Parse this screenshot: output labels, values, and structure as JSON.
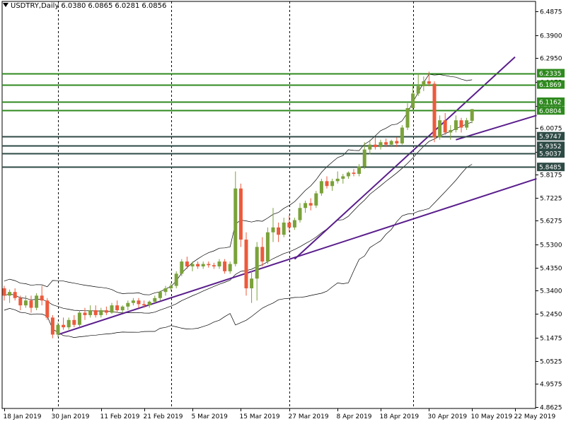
{
  "header": {
    "symbol": "USDTRY,Daily",
    "ohlc": [
      "6.0380",
      "6.0865",
      "6.0281",
      "6.0856"
    ]
  },
  "colors": {
    "up_candle": "#7aa23a",
    "down_candle": "#ec5a3c",
    "level_line": "#2f8a1f",
    "level_line_dark": "#2e4a45",
    "trendline": "#5a1e8c",
    "bands": "#000000",
    "badge_green": "#2f8a1f",
    "badge_dark": "#2e4a45"
  },
  "chart_data": {
    "type": "candlestick",
    "title": "USDTRY,Daily",
    "y_axis_ticks": [
      "6.4875",
      "6.3900",
      "6.2950",
      "6.1975",
      "6.1000",
      "6.0075",
      "5.9100",
      "5.8175",
      "5.7225",
      "5.6275",
      "5.5300",
      "5.4350",
      "5.3400",
      "5.2450",
      "5.1475",
      "5.0525",
      "4.9575",
      "4.8625"
    ],
    "ylim": [
      4.8625,
      6.4875
    ],
    "x_axis_ticks": [
      "18 Jan 2019",
      "30 Jan 2019",
      "11 Feb 2019",
      "21 Feb 2019",
      "5 Mar 2019",
      "15 Mar 2019",
      "27 Mar 2019",
      "8 Apr 2019",
      "18 Apr 2019",
      "30 Apr 2019",
      "10 May 2019",
      "22 May 2019"
    ],
    "period_separators_at": [
      "30 Jan 2019",
      "21 Feb 2019",
      "27 Mar 2019",
      "30 Apr 2019"
    ],
    "horizontal_levels": [
      {
        "label": "6.2335",
        "value": 6.2335,
        "style": "green"
      },
      {
        "label": "6.1869",
        "value": 6.1869,
        "style": "green"
      },
      {
        "label": "6.1162",
        "value": 6.1162,
        "style": "green"
      },
      {
        "label": "6.0804",
        "value": 6.0804,
        "style": "green"
      },
      {
        "label": "5.9747",
        "value": 5.9747,
        "style": "dark"
      },
      {
        "label": "5.9352",
        "value": 5.9352,
        "style": "dark"
      },
      {
        "label": "5.9037",
        "value": 5.9037,
        "style": "dark"
      },
      {
        "label": "5.8485",
        "value": 5.8485,
        "style": "dark"
      }
    ],
    "candles": [
      {
        "o": 5.35,
        "h": 5.36,
        "l": 5.3,
        "c": 5.32
      },
      {
        "o": 5.32,
        "h": 5.345,
        "l": 5.29,
        "c": 5.335
      },
      {
        "o": 5.335,
        "h": 5.35,
        "l": 5.3,
        "c": 5.31
      },
      {
        "o": 5.31,
        "h": 5.32,
        "l": 5.26,
        "c": 5.28
      },
      {
        "o": 5.28,
        "h": 5.32,
        "l": 5.27,
        "c": 5.3
      },
      {
        "o": 5.3,
        "h": 5.32,
        "l": 5.25,
        "c": 5.27
      },
      {
        "o": 5.27,
        "h": 5.33,
        "l": 5.26,
        "c": 5.32
      },
      {
        "o": 5.32,
        "h": 5.36,
        "l": 5.28,
        "c": 5.3
      },
      {
        "o": 5.3,
        "h": 5.31,
        "l": 5.22,
        "c": 5.23
      },
      {
        "o": 5.23,
        "h": 5.24,
        "l": 5.145,
        "c": 5.16
      },
      {
        "o": 5.16,
        "h": 5.21,
        "l": 5.15,
        "c": 5.2
      },
      {
        "o": 5.2,
        "h": 5.23,
        "l": 5.18,
        "c": 5.19
      },
      {
        "o": 5.19,
        "h": 5.23,
        "l": 5.18,
        "c": 5.22
      },
      {
        "o": 5.22,
        "h": 5.24,
        "l": 5.19,
        "c": 5.2
      },
      {
        "o": 5.2,
        "h": 5.26,
        "l": 5.19,
        "c": 5.25
      },
      {
        "o": 5.25,
        "h": 5.27,
        "l": 5.22,
        "c": 5.24
      },
      {
        "o": 5.24,
        "h": 5.28,
        "l": 5.23,
        "c": 5.26
      },
      {
        "o": 5.26,
        "h": 5.28,
        "l": 5.23,
        "c": 5.24
      },
      {
        "o": 5.24,
        "h": 5.27,
        "l": 5.23,
        "c": 5.26
      },
      {
        "o": 5.26,
        "h": 5.275,
        "l": 5.24,
        "c": 5.25
      },
      {
        "o": 5.25,
        "h": 5.29,
        "l": 5.245,
        "c": 5.28
      },
      {
        "o": 5.28,
        "h": 5.3,
        "l": 5.25,
        "c": 5.26
      },
      {
        "o": 5.26,
        "h": 5.28,
        "l": 5.25,
        "c": 5.275
      },
      {
        "o": 5.275,
        "h": 5.3,
        "l": 5.26,
        "c": 5.29
      },
      {
        "o": 5.29,
        "h": 5.31,
        "l": 5.28,
        "c": 5.3
      },
      {
        "o": 5.3,
        "h": 5.31,
        "l": 5.27,
        "c": 5.285
      },
      {
        "o": 5.285,
        "h": 5.3,
        "l": 5.27,
        "c": 5.28
      },
      {
        "o": 5.28,
        "h": 5.3,
        "l": 5.27,
        "c": 5.295
      },
      {
        "o": 5.295,
        "h": 5.32,
        "l": 5.29,
        "c": 5.31
      },
      {
        "o": 5.31,
        "h": 5.34,
        "l": 5.3,
        "c": 5.335
      },
      {
        "o": 5.335,
        "h": 5.36,
        "l": 5.32,
        "c": 5.35
      },
      {
        "o": 5.35,
        "h": 5.37,
        "l": 5.34,
        "c": 5.36
      },
      {
        "o": 5.36,
        "h": 5.42,
        "l": 5.35,
        "c": 5.41
      },
      {
        "o": 5.41,
        "h": 5.47,
        "l": 5.4,
        "c": 5.46
      },
      {
        "o": 5.46,
        "h": 5.48,
        "l": 5.43,
        "c": 5.44
      },
      {
        "o": 5.44,
        "h": 5.46,
        "l": 5.42,
        "c": 5.45
      },
      {
        "o": 5.45,
        "h": 5.46,
        "l": 5.43,
        "c": 5.44
      },
      {
        "o": 5.44,
        "h": 5.46,
        "l": 5.43,
        "c": 5.45
      },
      {
        "o": 5.45,
        "h": 5.46,
        "l": 5.435,
        "c": 5.445
      },
      {
        "o": 5.445,
        "h": 5.455,
        "l": 5.43,
        "c": 5.44
      },
      {
        "o": 5.44,
        "h": 5.47,
        "l": 5.43,
        "c": 5.46
      },
      {
        "o": 5.46,
        "h": 5.47,
        "l": 5.41,
        "c": 5.42
      },
      {
        "o": 5.42,
        "h": 5.46,
        "l": 5.41,
        "c": 5.45
      },
      {
        "o": 5.45,
        "h": 5.83,
        "l": 5.44,
        "c": 5.76
      },
      {
        "o": 5.76,
        "h": 5.78,
        "l": 5.52,
        "c": 5.55
      },
      {
        "o": 5.55,
        "h": 5.58,
        "l": 5.32,
        "c": 5.35
      },
      {
        "o": 5.35,
        "h": 5.42,
        "l": 5.29,
        "c": 5.39
      },
      {
        "o": 5.39,
        "h": 5.54,
        "l": 5.3,
        "c": 5.52
      },
      {
        "o": 5.52,
        "h": 5.56,
        "l": 5.44,
        "c": 5.46
      },
      {
        "o": 5.46,
        "h": 5.6,
        "l": 5.45,
        "c": 5.58
      },
      {
        "o": 5.58,
        "h": 5.68,
        "l": 5.54,
        "c": 5.6
      },
      {
        "o": 5.6,
        "h": 5.62,
        "l": 5.54,
        "c": 5.57
      },
      {
        "o": 5.57,
        "h": 5.64,
        "l": 5.56,
        "c": 5.62
      },
      {
        "o": 5.62,
        "h": 5.65,
        "l": 5.58,
        "c": 5.6
      },
      {
        "o": 5.6,
        "h": 5.64,
        "l": 5.59,
        "c": 5.63
      },
      {
        "o": 5.63,
        "h": 5.7,
        "l": 5.62,
        "c": 5.68
      },
      {
        "o": 5.68,
        "h": 5.71,
        "l": 5.66,
        "c": 5.7
      },
      {
        "o": 5.7,
        "h": 5.72,
        "l": 5.67,
        "c": 5.69
      },
      {
        "o": 5.69,
        "h": 5.75,
        "l": 5.68,
        "c": 5.74
      },
      {
        "o": 5.74,
        "h": 5.8,
        "l": 5.73,
        "c": 5.79
      },
      {
        "o": 5.79,
        "h": 5.81,
        "l": 5.76,
        "c": 5.77
      },
      {
        "o": 5.77,
        "h": 5.8,
        "l": 5.75,
        "c": 5.79
      },
      {
        "o": 5.79,
        "h": 5.83,
        "l": 5.78,
        "c": 5.8
      },
      {
        "o": 5.8,
        "h": 5.82,
        "l": 5.78,
        "c": 5.81
      },
      {
        "o": 5.81,
        "h": 5.83,
        "l": 5.8,
        "c": 5.825
      },
      {
        "o": 5.825,
        "h": 5.84,
        "l": 5.81,
        "c": 5.82
      },
      {
        "o": 5.82,
        "h": 5.86,
        "l": 5.81,
        "c": 5.85
      },
      {
        "o": 5.85,
        "h": 5.95,
        "l": 5.84,
        "c": 5.92
      },
      {
        "o": 5.92,
        "h": 5.96,
        "l": 5.9,
        "c": 5.94
      },
      {
        "o": 5.94,
        "h": 5.97,
        "l": 5.92,
        "c": 5.93
      },
      {
        "o": 5.93,
        "h": 5.96,
        "l": 5.92,
        "c": 5.95
      },
      {
        "o": 5.95,
        "h": 5.965,
        "l": 5.93,
        "c": 5.94
      },
      {
        "o": 5.94,
        "h": 5.96,
        "l": 5.93,
        "c": 5.955
      },
      {
        "o": 5.955,
        "h": 5.97,
        "l": 5.93,
        "c": 5.945
      },
      {
        "o": 5.945,
        "h": 6.02,
        "l": 5.94,
        "c": 6.01
      },
      {
        "o": 6.01,
        "h": 6.11,
        "l": 6.0,
        "c": 6.09
      },
      {
        "o": 6.09,
        "h": 6.19,
        "l": 6.08,
        "c": 6.15
      },
      {
        "o": 6.15,
        "h": 6.23,
        "l": 6.14,
        "c": 6.18
      },
      {
        "o": 6.18,
        "h": 6.22,
        "l": 6.16,
        "c": 6.2
      },
      {
        "o": 6.2,
        "h": 6.24,
        "l": 6.18,
        "c": 6.19
      },
      {
        "o": 6.19,
        "h": 6.2,
        "l": 5.95,
        "c": 5.97
      },
      {
        "o": 5.97,
        "h": 6.06,
        "l": 5.96,
        "c": 6.04
      },
      {
        "o": 6.04,
        "h": 6.07,
        "l": 5.98,
        "c": 5.99
      },
      {
        "o": 5.99,
        "h": 6.02,
        "l": 5.96,
        "c": 6.0
      },
      {
        "o": 6.0,
        "h": 6.06,
        "l": 5.99,
        "c": 6.04
      },
      {
        "o": 6.04,
        "h": 6.05,
        "l": 5.99,
        "c": 6.01
      },
      {
        "o": 6.01,
        "h": 6.05,
        "l": 6.0,
        "c": 6.04
      },
      {
        "o": 6.038,
        "h": 6.0865,
        "l": 6.0281,
        "c": 6.0856
      }
    ]
  }
}
